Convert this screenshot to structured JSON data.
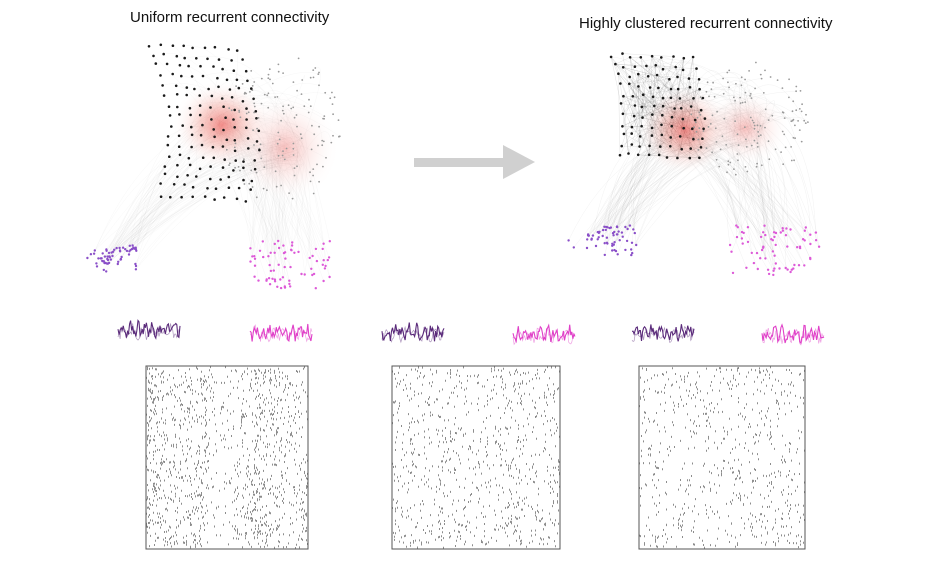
{
  "titles": {
    "left": "Uniform recurrent connectivity",
    "right": "Highly clustered recurrent connectivity"
  },
  "colors": {
    "background": "#ffffff",
    "node_black": "#1a1a1a",
    "node_grey": "#9a9a9a",
    "node_purple": "#8a4fc8",
    "node_pink": "#dd5ad8",
    "edge": "#777777",
    "red_glow": "#e8302a",
    "trace_purple": "#5a2a7a",
    "trace_pink": "#e040c8",
    "arrow": "#d0d0d0",
    "raster_border": "#555555",
    "raster_spike": "#000000"
  },
  "networks": [
    {
      "id": "uniform",
      "clustering": 0.0
    },
    {
      "id": "clustered",
      "clustering": 1.0
    }
  ],
  "traces": [
    {
      "id": "purple-1",
      "color": "purple"
    },
    {
      "id": "pink-1",
      "color": "pink"
    },
    {
      "id": "purple-2",
      "color": "purple"
    },
    {
      "id": "pink-2",
      "color": "pink"
    },
    {
      "id": "purple-3",
      "color": "purple"
    },
    {
      "id": "pink-3",
      "color": "pink"
    }
  ],
  "rasters": [
    {
      "id": "raster-1",
      "band_strength": 0.85,
      "density": 0.55
    },
    {
      "id": "raster-2",
      "band_strength": 0.35,
      "density": 0.35
    },
    {
      "id": "raster-3",
      "band_strength": 0.08,
      "density": 0.22
    }
  ]
}
